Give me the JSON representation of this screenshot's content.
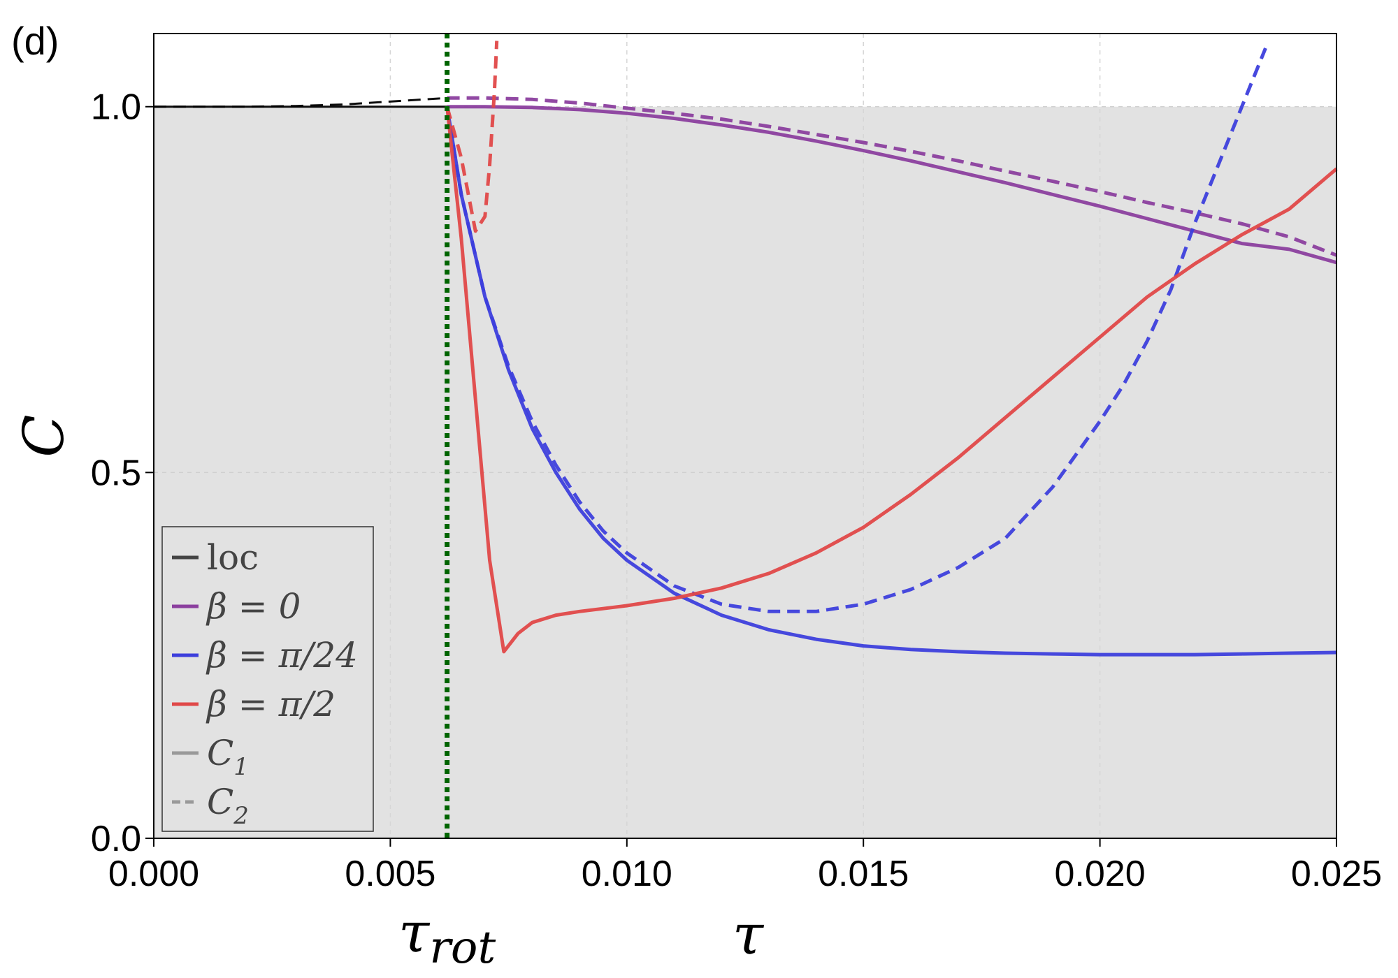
{
  "panel_label": "(d)",
  "chart_data": {
    "type": "line",
    "xlabel": "τ",
    "ylabel": "C",
    "xlim": [
      0.0,
      0.025
    ],
    "ylim": [
      0.0,
      1.1
    ],
    "xticks": [
      "0.000",
      "0.005",
      "0.010",
      "0.015",
      "0.020",
      "0.025"
    ],
    "yticks": [
      "0.0",
      "0.5",
      "1.0"
    ],
    "grid": true,
    "shaded_region": {
      "y_from": 0.0,
      "y_to": 1.0,
      "color": "#e2e2e2"
    },
    "vline": {
      "x": 0.0062,
      "label": "τ_rot",
      "label_main": "τ",
      "label_sub": "rot",
      "style": "dotted",
      "color": "#006400"
    },
    "legend_position": "lower-left",
    "legend": [
      {
        "text": "loc",
        "color": "#444444",
        "style": "solid"
      },
      {
        "text": "β = 0",
        "color": "#8b3f9e",
        "style": "solid"
      },
      {
        "text": "β = π/24",
        "color": "#3d3fdc",
        "style": "solid"
      },
      {
        "text": "β = π/2",
        "color": "#e04848",
        "style": "solid"
      },
      {
        "text": "C1",
        "main": "C",
        "sub": "1",
        "color": "#999999",
        "style": "solid"
      },
      {
        "text": "C2",
        "main": "C",
        "sub": "2",
        "color": "#999999",
        "style": "dashed"
      }
    ],
    "series": [
      {
        "name": "loc",
        "component": "C1",
        "color": "#000000",
        "style": "solid",
        "x": [
          0.0,
          0.001,
          0.002,
          0.003,
          0.004,
          0.005,
          0.0062
        ],
        "y": [
          1.0,
          1.0,
          1.0,
          1.0,
          1.0,
          1.0,
          1.0
        ]
      },
      {
        "name": "loc",
        "component": "C2",
        "color": "#000000",
        "style": "dashed",
        "x": [
          0.0,
          0.002,
          0.003,
          0.004,
          0.005,
          0.0062
        ],
        "y": [
          1.0,
          1.0,
          1.001,
          1.003,
          1.007,
          1.012
        ]
      },
      {
        "name": "β = 0",
        "component": "C1",
        "color": "#8b3f9e",
        "style": "solid",
        "x": [
          0.0062,
          0.007,
          0.008,
          0.009,
          0.01,
          0.011,
          0.012,
          0.013,
          0.014,
          0.015,
          0.016,
          0.017,
          0.018,
          0.019,
          0.02,
          0.021,
          0.022,
          0.023,
          0.024,
          0.025
        ],
        "y": [
          1.0,
          1.0,
          0.999,
          0.996,
          0.991,
          0.984,
          0.975,
          0.965,
          0.953,
          0.94,
          0.926,
          0.911,
          0.896,
          0.88,
          0.864,
          0.847,
          0.83,
          0.813,
          0.805,
          0.787
        ]
      },
      {
        "name": "β = 0",
        "component": "C2",
        "color": "#8b3f9e",
        "style": "dashed",
        "x": [
          0.0062,
          0.007,
          0.008,
          0.009,
          0.01,
          0.011,
          0.012,
          0.013,
          0.014,
          0.015,
          0.016,
          0.017,
          0.018,
          0.019,
          0.02,
          0.021,
          0.022,
          0.023,
          0.024,
          0.025
        ],
        "y": [
          1.012,
          1.012,
          1.01,
          1.005,
          0.998,
          0.991,
          0.983,
          0.973,
          0.962,
          0.951,
          0.939,
          0.926,
          0.912,
          0.898,
          0.884,
          0.869,
          0.855,
          0.84,
          0.822,
          0.797
        ]
      },
      {
        "name": "β = π/24",
        "component": "C1",
        "color": "#3d3fdc",
        "style": "solid",
        "x": [
          0.0062,
          0.0065,
          0.007,
          0.0075,
          0.008,
          0.0085,
          0.009,
          0.0095,
          0.01,
          0.011,
          0.012,
          0.013,
          0.014,
          0.015,
          0.016,
          0.017,
          0.018,
          0.019,
          0.02,
          0.021,
          0.022,
          0.023,
          0.024,
          0.025
        ],
        "y": [
          1.0,
          0.88,
          0.74,
          0.64,
          0.56,
          0.5,
          0.45,
          0.41,
          0.38,
          0.335,
          0.305,
          0.285,
          0.272,
          0.263,
          0.258,
          0.255,
          0.253,
          0.252,
          0.251,
          0.251,
          0.251,
          0.252,
          0.253,
          0.254
        ]
      },
      {
        "name": "β = π/24",
        "component": "C2",
        "color": "#3d3fdc",
        "style": "dashed",
        "x": [
          0.0062,
          0.0065,
          0.007,
          0.0075,
          0.008,
          0.0085,
          0.009,
          0.0095,
          0.01,
          0.011,
          0.012,
          0.013,
          0.014,
          0.015,
          0.016,
          0.017,
          0.018,
          0.019,
          0.02,
          0.0205,
          0.021,
          0.0215,
          0.022,
          0.0225,
          0.023,
          0.0235
        ],
        "y": [
          1.0,
          0.88,
          0.74,
          0.645,
          0.57,
          0.51,
          0.46,
          0.42,
          0.39,
          0.345,
          0.32,
          0.31,
          0.31,
          0.32,
          0.34,
          0.37,
          0.41,
          0.48,
          0.57,
          0.62,
          0.68,
          0.75,
          0.84,
          0.92,
          1.0,
          1.08
        ]
      },
      {
        "name": "β = π/2",
        "component": "C1",
        "color": "#e04848",
        "style": "solid",
        "x": [
          0.0062,
          0.0065,
          0.0068,
          0.0071,
          0.0074,
          0.0077,
          0.008,
          0.0085,
          0.009,
          0.01,
          0.011,
          0.012,
          0.013,
          0.014,
          0.015,
          0.016,
          0.017,
          0.018,
          0.019,
          0.02,
          0.021,
          0.022,
          0.023,
          0.024,
          0.025
        ],
        "y": [
          1.0,
          0.82,
          0.6,
          0.38,
          0.255,
          0.28,
          0.295,
          0.305,
          0.31,
          0.318,
          0.328,
          0.342,
          0.362,
          0.39,
          0.425,
          0.47,
          0.52,
          0.575,
          0.63,
          0.685,
          0.74,
          0.785,
          0.825,
          0.86,
          0.915
        ]
      },
      {
        "name": "β = π/2",
        "component": "C2",
        "color": "#e04848",
        "style": "dashed",
        "x": [
          0.0062,
          0.0065,
          0.0068,
          0.007,
          0.0071,
          0.0072,
          0.00725
        ],
        "y": [
          1.0,
          0.93,
          0.83,
          0.85,
          0.92,
          1.02,
          1.09
        ]
      }
    ]
  }
}
